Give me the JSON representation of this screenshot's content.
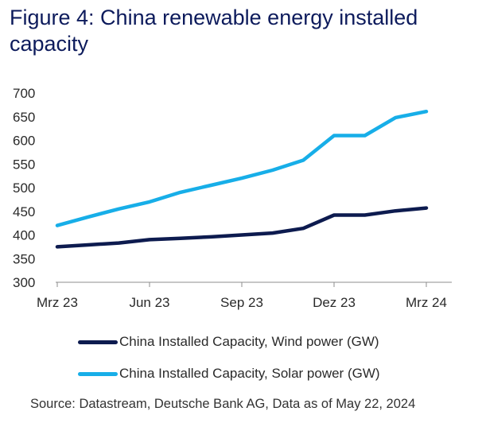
{
  "chart_data": {
    "type": "line",
    "title": "Figure 4: China renewable energy installed capacity",
    "xlabel": "",
    "ylabel": "",
    "ylim": [
      300,
      700
    ],
    "yticks": [
      300,
      350,
      400,
      450,
      500,
      550,
      600,
      650,
      700
    ],
    "x": [
      "Mar 23",
      "Apr 23",
      "May 23",
      "Jun 23",
      "Jul 23",
      "Aug 23",
      "Sep 23",
      "Oct 23",
      "Nov 23",
      "Dec 23",
      "Jan 24",
      "Feb 24",
      "Mar 24"
    ],
    "xticks": [
      "Mrz 23",
      "Jun 23",
      "Sep 23",
      "Dez 23",
      "Mrz 24"
    ],
    "series": [
      {
        "name": "China Installed Capacity, Wind power (GW)",
        "color": "#0d1b4f",
        "values": [
          375,
          379,
          383,
          390,
          393,
          396,
          400,
          404,
          414,
          442,
          442,
          451,
          457
        ]
      },
      {
        "name": "China Installed Capacity, Solar power (GW)",
        "color": "#17aee8",
        "values": [
          420,
          438,
          455,
          470,
          490,
          505,
          520,
          537,
          558,
          610,
          610,
          648,
          661
        ]
      }
    ],
    "legend_position": "bottom"
  },
  "source": "Source: Datastream, Deutsche Bank AG, Data as of May 22, 2024"
}
